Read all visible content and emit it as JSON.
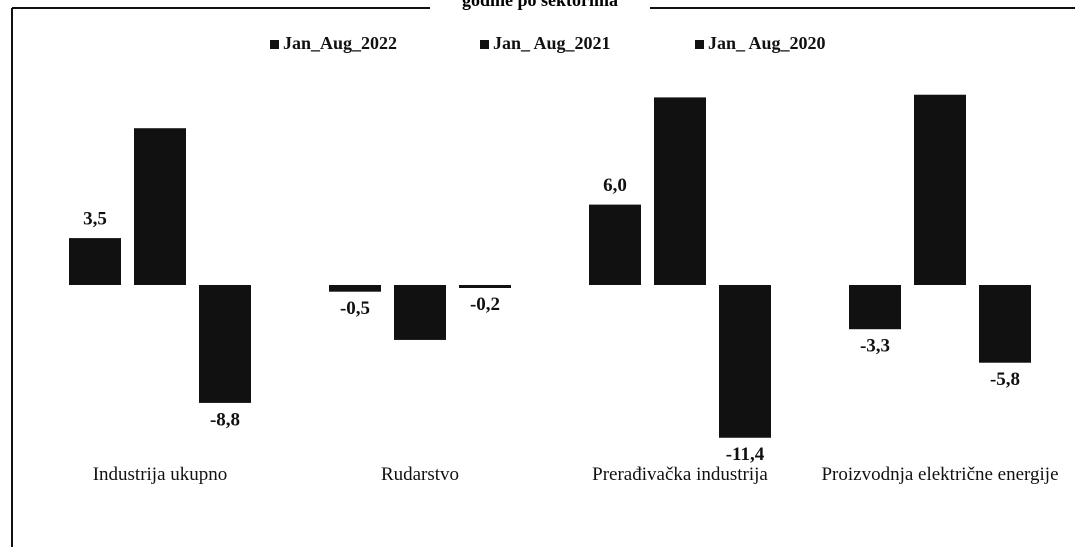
{
  "chart_data": {
    "type": "bar",
    "title": "godine po sektorima",
    "categories": [
      "Industrija ukupno",
      "Rudarstvo",
      "Prerađivačka industrija",
      "Proizvodnja električne energije"
    ],
    "series": [
      {
        "name": "Jan_Aug_2022",
        "color": "#111111",
        "values": [
          3.5,
          -0.5,
          6.0,
          -3.3
        ],
        "value_labels": [
          "3,5",
          "-0,5",
          "6,0",
          "-3,3"
        ]
      },
      {
        "name": "Jan_ Aug_2021",
        "color": "#111111",
        "values": [
          11.7,
          -4.1,
          14.0,
          14.2
        ],
        "value_labels": [
          null,
          null,
          null,
          null
        ]
      },
      {
        "name": "Jan_ Aug_2020",
        "color": "#111111",
        "values": [
          -8.8,
          -0.2,
          -11.4,
          -5.8
        ],
        "value_labels": [
          "-8,8",
          "-0,2",
          "-11,4",
          "-5,8"
        ]
      }
    ]
  }
}
